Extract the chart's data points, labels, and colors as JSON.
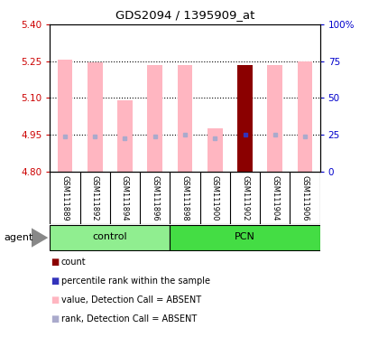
{
  "title": "GDS2094 / 1395909_at",
  "samples": [
    "GSM111889",
    "GSM111892",
    "GSM111894",
    "GSM111896",
    "GSM111898",
    "GSM111900",
    "GSM111902",
    "GSM111904",
    "GSM111906"
  ],
  "groups": [
    "control",
    "control",
    "control",
    "control",
    "PCN",
    "PCN",
    "PCN",
    "PCN",
    "PCN"
  ],
  "values": [
    5.255,
    5.245,
    5.09,
    5.235,
    5.235,
    4.975,
    5.235,
    5.235,
    5.248
  ],
  "ranks": [
    4.945,
    4.945,
    4.935,
    4.945,
    4.952,
    4.935,
    4.952,
    4.952,
    4.945
  ],
  "is_dark_red": [
    false,
    false,
    false,
    false,
    false,
    false,
    true,
    false,
    false
  ],
  "ylim_left": [
    4.8,
    5.4
  ],
  "ylim_right": [
    0,
    100
  ],
  "yticks_left": [
    4.8,
    4.95,
    5.1,
    5.25,
    5.4
  ],
  "yticks_right": [
    0,
    25,
    50,
    75,
    100
  ],
  "ytick_labels_right": [
    "0",
    "25",
    "50",
    "75",
    "100%"
  ],
  "hlines": [
    4.95,
    5.1,
    5.25
  ],
  "bar_width": 0.5,
  "pink_color": "#FFB6C1",
  "dark_red_color": "#8B0000",
  "blue_dot_color": "#3333BB",
  "light_blue_color": "#AAAACC",
  "control_group_color": "#90EE90",
  "pcn_group_color": "#44DD44",
  "group_label_control": "control",
  "group_label_pcn": "PCN",
  "agent_label": "agent",
  "legend_items": [
    "count",
    "percentile rank within the sample",
    "value, Detection Call = ABSENT",
    "rank, Detection Call = ABSENT"
  ],
  "legend_colors": [
    "#8B0000",
    "#3333BB",
    "#FFB6C1",
    "#AAAACC"
  ],
  "background_color": "#FFFFFF",
  "plot_bg_color": "#FFFFFF",
  "left_tick_color": "#CC0000",
  "right_tick_color": "#0000CC",
  "n_control": 4,
  "n_pcn": 5
}
